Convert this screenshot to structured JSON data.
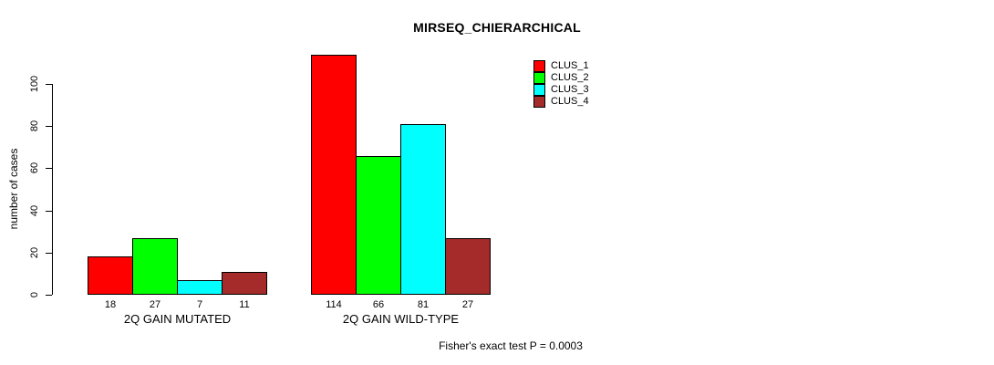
{
  "chart_data": {
    "type": "bar",
    "title": "MIRSEQ_CHIERARCHICAL",
    "ylabel": "number of cases",
    "xlabel": "",
    "ylim": [
      0,
      114
    ],
    "yticks": [
      0,
      20,
      40,
      60,
      80,
      100
    ],
    "grid": false,
    "legend_position": "top-right",
    "categories": [
      "2Q GAIN MUTATED",
      "2Q GAIN WILD-TYPE"
    ],
    "series": [
      {
        "name": "CLUS_1",
        "color": "#FF0000",
        "values": [
          18,
          114
        ]
      },
      {
        "name": "CLUS_2",
        "color": "#00FF00",
        "values": [
          27,
          66
        ]
      },
      {
        "name": "CLUS_3",
        "color": "#00FFFF",
        "values": [
          7,
          81
        ]
      },
      {
        "name": "CLUS_4",
        "color": "#A52A2A",
        "values": [
          11,
          27
        ]
      }
    ],
    "bar_value_labels": [
      [
        "18",
        "27",
        "7",
        "11"
      ],
      [
        "114",
        "66",
        "81",
        "27"
      ]
    ],
    "annotation": "Fisher's exact test P = 0.0003"
  }
}
